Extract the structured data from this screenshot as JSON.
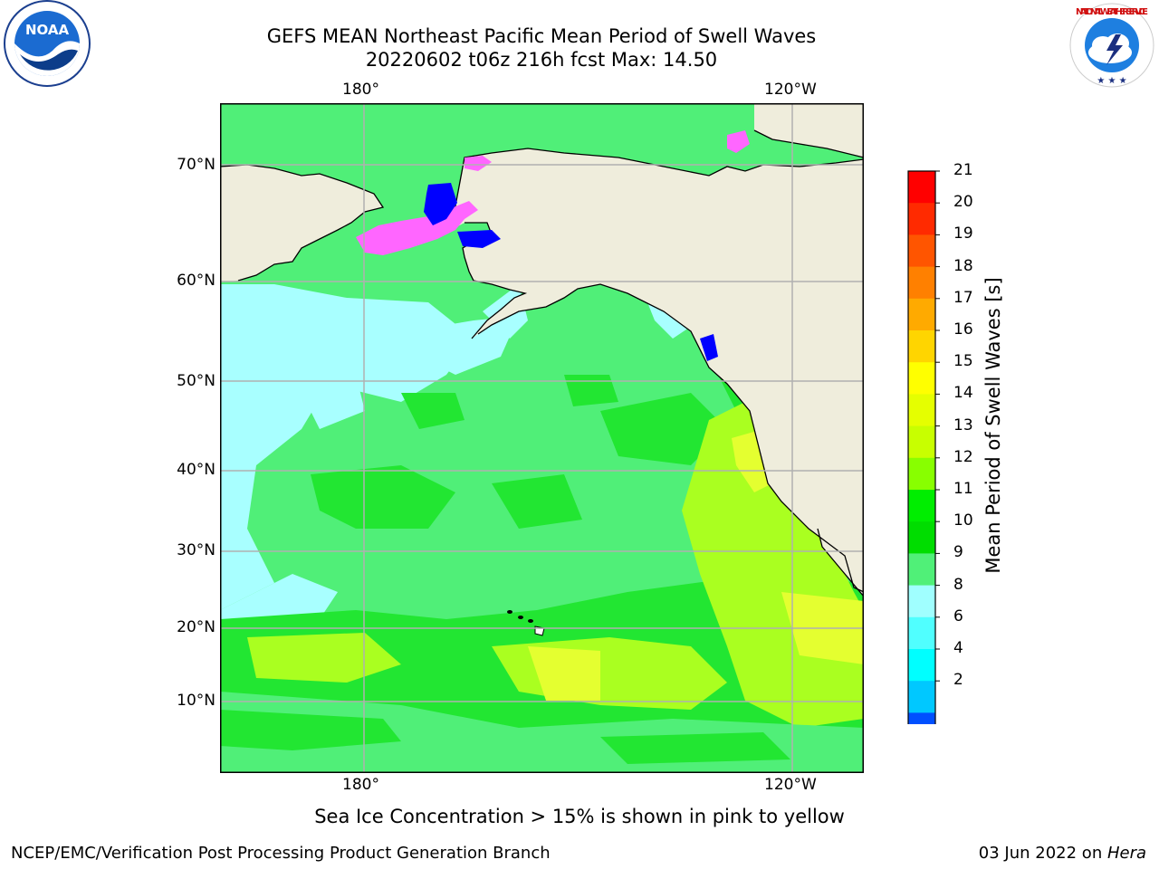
{
  "title": {
    "line1": "GEFS MEAN Northeast Pacific Mean Period of Swell Waves",
    "line2": "20220602 t06z 216h fcst   Max: 14.50"
  },
  "axes": {
    "lon_top": [
      "180°",
      "120°W"
    ],
    "lon_bottom": [
      "180°",
      "120°W"
    ],
    "lat": [
      "70°N",
      "60°N",
      "50°N",
      "40°N",
      "30°N",
      "20°N",
      "10°N"
    ]
  },
  "colorbar": {
    "label": "Mean Period of Swell Waves [s]",
    "ticks": [
      "21",
      "20",
      "19",
      "18",
      "17",
      "16",
      "15",
      "14",
      "13",
      "12",
      "11",
      "10",
      "9",
      "8",
      "6",
      "4",
      "2"
    ],
    "colors": [
      "#ff0000",
      "#ff2a00",
      "#ff5500",
      "#ff8000",
      "#ffaa00",
      "#ffd500",
      "#ffff00",
      "#e5ff00",
      "#c8ff00",
      "#88ff00",
      "#00ee00",
      "#00dd00",
      "#50f078",
      "#a0ffff",
      "#50ffff",
      "#00ffff",
      "#00c8ff",
      "#0050ff"
    ],
    "extend_color": "#0000ff"
  },
  "map_colors": {
    "land": "#efeddc",
    "coast": "#000000",
    "grid": "#b0b0b0",
    "ocean_mid": "#50ef78",
    "ocean_green": "#22e632",
    "ocean_lime": "#aaff20",
    "ocean_yellow": "#e4ff30",
    "ocean_cyan": "#a8ffff",
    "ice_pink": "#ff66ff",
    "ice_blue": "#0000ff"
  },
  "subtitle": "Sea Ice Concentration > 15% is shown in pink to yellow",
  "footer": {
    "left": "NCEP/EMC/Verification Post Processing Product Generation Branch",
    "right_date": "03 Jun 2022 on ",
    "right_host": "Hera"
  },
  "logos": {
    "noaa": "NOAA",
    "nws": "NATIONAL WEATHER SERVICE"
  }
}
